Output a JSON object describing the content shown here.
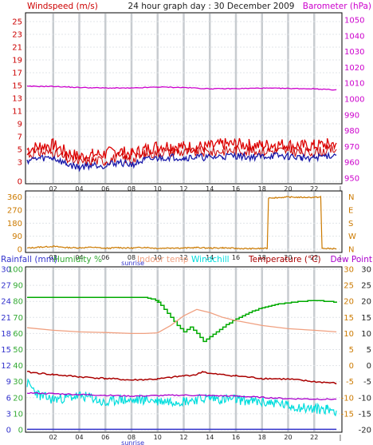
{
  "colors": {
    "background": "#ffffff",
    "panel_border": "#000000",
    "vertical_grid": "#c8ccd0",
    "horizontal_grid": "#e0e4e8",
    "windspeed": "#cc0000",
    "windgust": "#dd0000",
    "windavg": "#1a1aaa",
    "barometer": "#cc00cc",
    "winddir": "#cc7a00",
    "humidity": "#00aa00",
    "indoor_temp": "#f0a080",
    "windchill": "#00dddd",
    "temperature": "#aa0000",
    "dew_point": "#aa00cc",
    "rainfall": "#3333cc",
    "left_axis_blue": "#3333cc",
    "left_axis_green": "#33aa33",
    "right_axis_magenta": "#cc00cc",
    "right_axis_orange": "#cc7a00",
    "right_axis_dark": "#222222"
  },
  "chart_data": [
    {
      "type": "line",
      "title": "24 hour graph day : 30 December 2009",
      "left_label": "Windspeed (m/s)",
      "right_label": "Barometer (hPa)",
      "x_ticks": [
        "02",
        "04",
        "06",
        "08",
        "10",
        "12",
        "14",
        "16",
        "18",
        "20",
        "22"
      ],
      "x_sublabel": "sunrise",
      "xlim": [
        0,
        24
      ],
      "ylim_left": [
        0,
        26
      ],
      "ylim_right": [
        948,
        1053
      ],
      "left_ticks": [
        0,
        3,
        5,
        7,
        9,
        11,
        13,
        15,
        17,
        19,
        21,
        23,
        25
      ],
      "right_ticks": [
        950,
        960,
        970,
        980,
        990,
        1000,
        1010,
        1020,
        1030,
        1040,
        1050
      ],
      "series": [
        {
          "name": "Windspeed (m/s)",
          "axis": "left",
          "x": [
            0,
            1,
            2,
            3,
            4,
            5,
            6,
            7,
            8,
            9,
            10,
            11,
            12,
            13,
            14,
            15,
            16,
            17,
            18,
            19,
            20,
            21,
            22,
            23,
            23.7
          ],
          "values": [
            4.2,
            4.5,
            4.5,
            3.5,
            3.0,
            3.3,
            3.2,
            3.8,
            3.3,
            4.2,
            4.5,
            4.7,
            4.5,
            4.6,
            4.5,
            4.8,
            4.9,
            4.7,
            4.7,
            4.8,
            4.8,
            4.5,
            4.5,
            4.9,
            5.0
          ]
        },
        {
          "name": "Wind gust",
          "axis": "left",
          "x": [
            0,
            1,
            2,
            3,
            4,
            5,
            6,
            7,
            8,
            9,
            10,
            11,
            12,
            13,
            14,
            15,
            16,
            17,
            18,
            19,
            20,
            21,
            22,
            23,
            23.7
          ],
          "values": [
            5.0,
            5.5,
            5.7,
            4.6,
            3.8,
            4.2,
            4.3,
            4.8,
            4.2,
            5.0,
            5.5,
            5.6,
            5.4,
            5.4,
            5.4,
            5.8,
            5.8,
            5.7,
            5.6,
            5.8,
            5.7,
            5.5,
            5.6,
            5.8,
            6.0
          ]
        },
        {
          "name": "Wind average",
          "axis": "left",
          "x": [
            0,
            1,
            2,
            3,
            4,
            5,
            6,
            7,
            8,
            9,
            10,
            11,
            12,
            13,
            14,
            15,
            16,
            17,
            18,
            19,
            20,
            21,
            22,
            23,
            23.7
          ],
          "values": [
            3.3,
            3.6,
            3.7,
            2.7,
            2.2,
            2.6,
            2.5,
            3.0,
            2.6,
            3.3,
            3.6,
            3.8,
            3.7,
            3.8,
            3.7,
            3.9,
            4.0,
            3.8,
            3.9,
            4.0,
            3.9,
            3.7,
            3.7,
            4.0,
            4.1
          ]
        },
        {
          "name": "Barometer (hPa)",
          "axis": "right",
          "x": [
            0,
            2,
            4,
            6,
            8,
            10,
            12,
            14,
            16,
            18,
            20,
            22,
            23.7
          ],
          "values": [
            1008,
            1008,
            1007.3,
            1007,
            1006.9,
            1007.6,
            1007.3,
            1006.5,
            1006.6,
            1006.9,
            1006.7,
            1006.5,
            1005.8
          ]
        }
      ]
    },
    {
      "type": "line",
      "name": "Wind direction",
      "x_ticks": [
        "02",
        "04",
        "06",
        "08",
        "10",
        "12",
        "14",
        "16",
        "18",
        "20",
        "22"
      ],
      "x_sublabel": "sunrise",
      "xlim": [
        0,
        24
      ],
      "ylim": [
        0,
        380
      ],
      "left_ticks": [
        0,
        90,
        180,
        270,
        360
      ],
      "right_ticks": [
        "N",
        "W",
        "S",
        "E",
        "N"
      ],
      "series": [
        {
          "name": "Wind direction",
          "x": [
            0,
            1,
            2,
            3,
            4,
            5,
            6,
            7,
            8,
            9,
            10,
            11,
            12,
            13,
            14,
            15,
            16,
            17,
            18.4,
            18.5,
            19,
            20,
            21,
            22,
            22.5,
            22.6,
            23,
            23.7
          ],
          "values": [
            8,
            15,
            20,
            12,
            10,
            14,
            6,
            12,
            8,
            14,
            6,
            10,
            8,
            12,
            8,
            10,
            6,
            4,
            6,
            355,
            355,
            360,
            358,
            358,
            360,
            6,
            5,
            4
          ]
        }
      ]
    },
    {
      "type": "line",
      "x_ticks": [
        "02",
        "04",
        "06",
        "08",
        "10",
        "12",
        "14",
        "16",
        "18",
        "20",
        "22"
      ],
      "x_sublabel": "sunrise",
      "xlim": [
        0,
        24
      ],
      "left_labels": [
        "Rainfall (mm)",
        "Humidity %"
      ],
      "center_labels": [
        "Indoor temp",
        "Windchill"
      ],
      "right_labels": [
        "Temperature (°C)",
        "Dew Point"
      ],
      "ylim_left": [
        0,
        100
      ],
      "ylim_right": [
        -20,
        30
      ],
      "left_ticks_blue": [
        0,
        3,
        6,
        9,
        12,
        15,
        18,
        21,
        24,
        27,
        30
      ],
      "left_ticks_green": [
        0,
        10,
        20,
        30,
        40,
        50,
        60,
        70,
        80,
        90,
        100
      ],
      "right_ticks_orange": [
        -15,
        -10,
        -5,
        0,
        5,
        10,
        15,
        20,
        25,
        30
      ],
      "right_ticks_dark": [
        -20,
        -15,
        -10,
        -5,
        0,
        5,
        10,
        15,
        20,
        25,
        30
      ],
      "series": [
        {
          "name": "Humidity %",
          "axis": "left",
          "x": [
            0,
            2,
            4,
            6,
            8,
            9,
            9.6,
            10,
            10.5,
            11,
            11.5,
            12,
            12.5,
            13,
            13.5,
            14,
            14.5,
            15,
            16,
            17,
            18,
            19,
            20,
            21,
            22,
            23,
            23.7
          ],
          "values": [
            82.5,
            82.6,
            82.4,
            82.7,
            82.5,
            82.5,
            81.5,
            79.5,
            75,
            70,
            65,
            61,
            64,
            60,
            55,
            58,
            61,
            64,
            69,
            73,
            76,
            78,
            79,
            80,
            80.5,
            80,
            79.5
          ]
        },
        {
          "name": "Indoor temp",
          "axis": "right",
          "x": [
            0,
            2,
            4,
            6,
            8,
            9,
            10,
            11,
            12,
            13,
            14,
            15,
            16,
            18,
            20,
            22,
            23.7
          ],
          "values": [
            11.8,
            11,
            10.5,
            10.3,
            10,
            10,
            10.2,
            12.5,
            15.5,
            17.5,
            16.5,
            15,
            14,
            12.5,
            11.5,
            11,
            10.5
          ]
        },
        {
          "name": "Windchill",
          "axis": "right",
          "x": [
            0,
            1,
            2,
            3,
            4,
            5,
            6,
            7,
            8,
            9,
            10,
            11,
            12,
            13,
            14,
            15,
            16,
            17,
            18,
            19,
            20,
            21,
            22,
            23,
            23.7
          ],
          "values": [
            -5.5,
            -9.5,
            -10.5,
            -10,
            -9.5,
            -10,
            -12,
            -10.5,
            -11,
            -10.5,
            -11,
            -11,
            -11,
            -10.5,
            -10,
            -10.5,
            -10.5,
            -11,
            -11.5,
            -11.5,
            -12.5,
            -13,
            -13.5,
            -13.5,
            -14
          ]
        },
        {
          "name": "Temperature (°C)",
          "axis": "right",
          "x": [
            0,
            2,
            4,
            6,
            8,
            10,
            12,
            13,
            13.5,
            14,
            16,
            18,
            20,
            22,
            23.7
          ],
          "values": [
            -2,
            -2.8,
            -3.5,
            -4,
            -4.5,
            -4.2,
            -3.2,
            -2.8,
            -1.8,
            -2.5,
            -3.2,
            -4,
            -4.2,
            -5,
            -5.5
          ]
        },
        {
          "name": "Dew Point",
          "axis": "right",
          "x": [
            0,
            4,
            8,
            12,
            16,
            20,
            23.7
          ],
          "values": [
            -8.5,
            -9,
            -9.5,
            -9.2,
            -9.5,
            -10.3,
            -10.5
          ]
        },
        {
          "name": "Rainfall (mm)",
          "axis": "left",
          "x": [
            0,
            23.7
          ],
          "values": [
            0.3,
            0.3
          ]
        }
      ]
    }
  ]
}
